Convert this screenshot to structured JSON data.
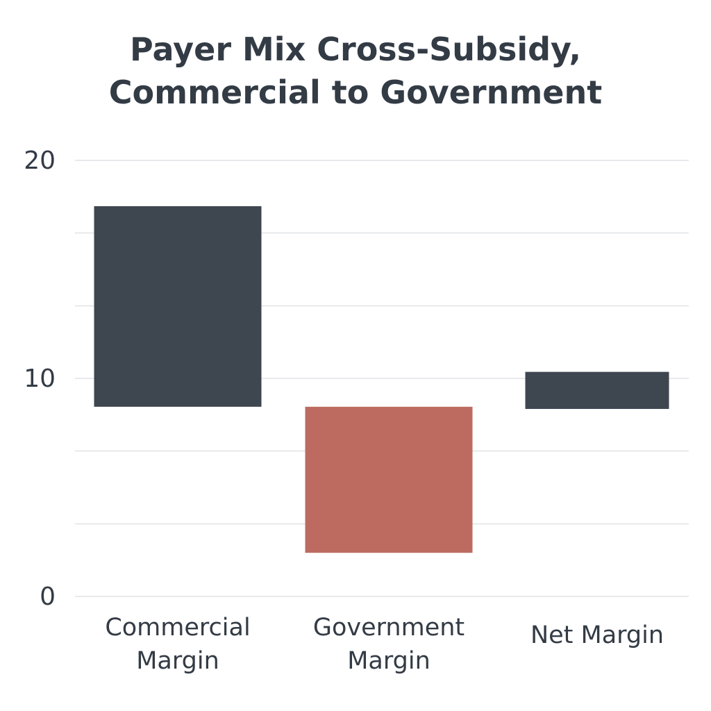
{
  "chart_data": {
    "type": "bar",
    "variant": "waterfall",
    "title_lines": [
      "Payer Mix Cross-Subsidy,",
      "Commercial to Government"
    ],
    "categories": [
      [
        "Commercial",
        "Margin"
      ],
      [
        "Government",
        "Margin"
      ],
      [
        "Net Margin"
      ]
    ],
    "bars": [
      {
        "low": 8.7,
        "high": 17.9,
        "color": "#3e4650"
      },
      {
        "low": 2.0,
        "high": 8.7,
        "color": "#bd6b60"
      },
      {
        "low": 8.6,
        "high": 10.3,
        "color": "#3e4650"
      }
    ],
    "ylim": [
      0,
      20
    ],
    "yticks": [
      0,
      10,
      20
    ],
    "gridlines": [
      0,
      3.33,
      6.67,
      10,
      13.33,
      16.67,
      20
    ],
    "grid": true,
    "legend": "none"
  }
}
